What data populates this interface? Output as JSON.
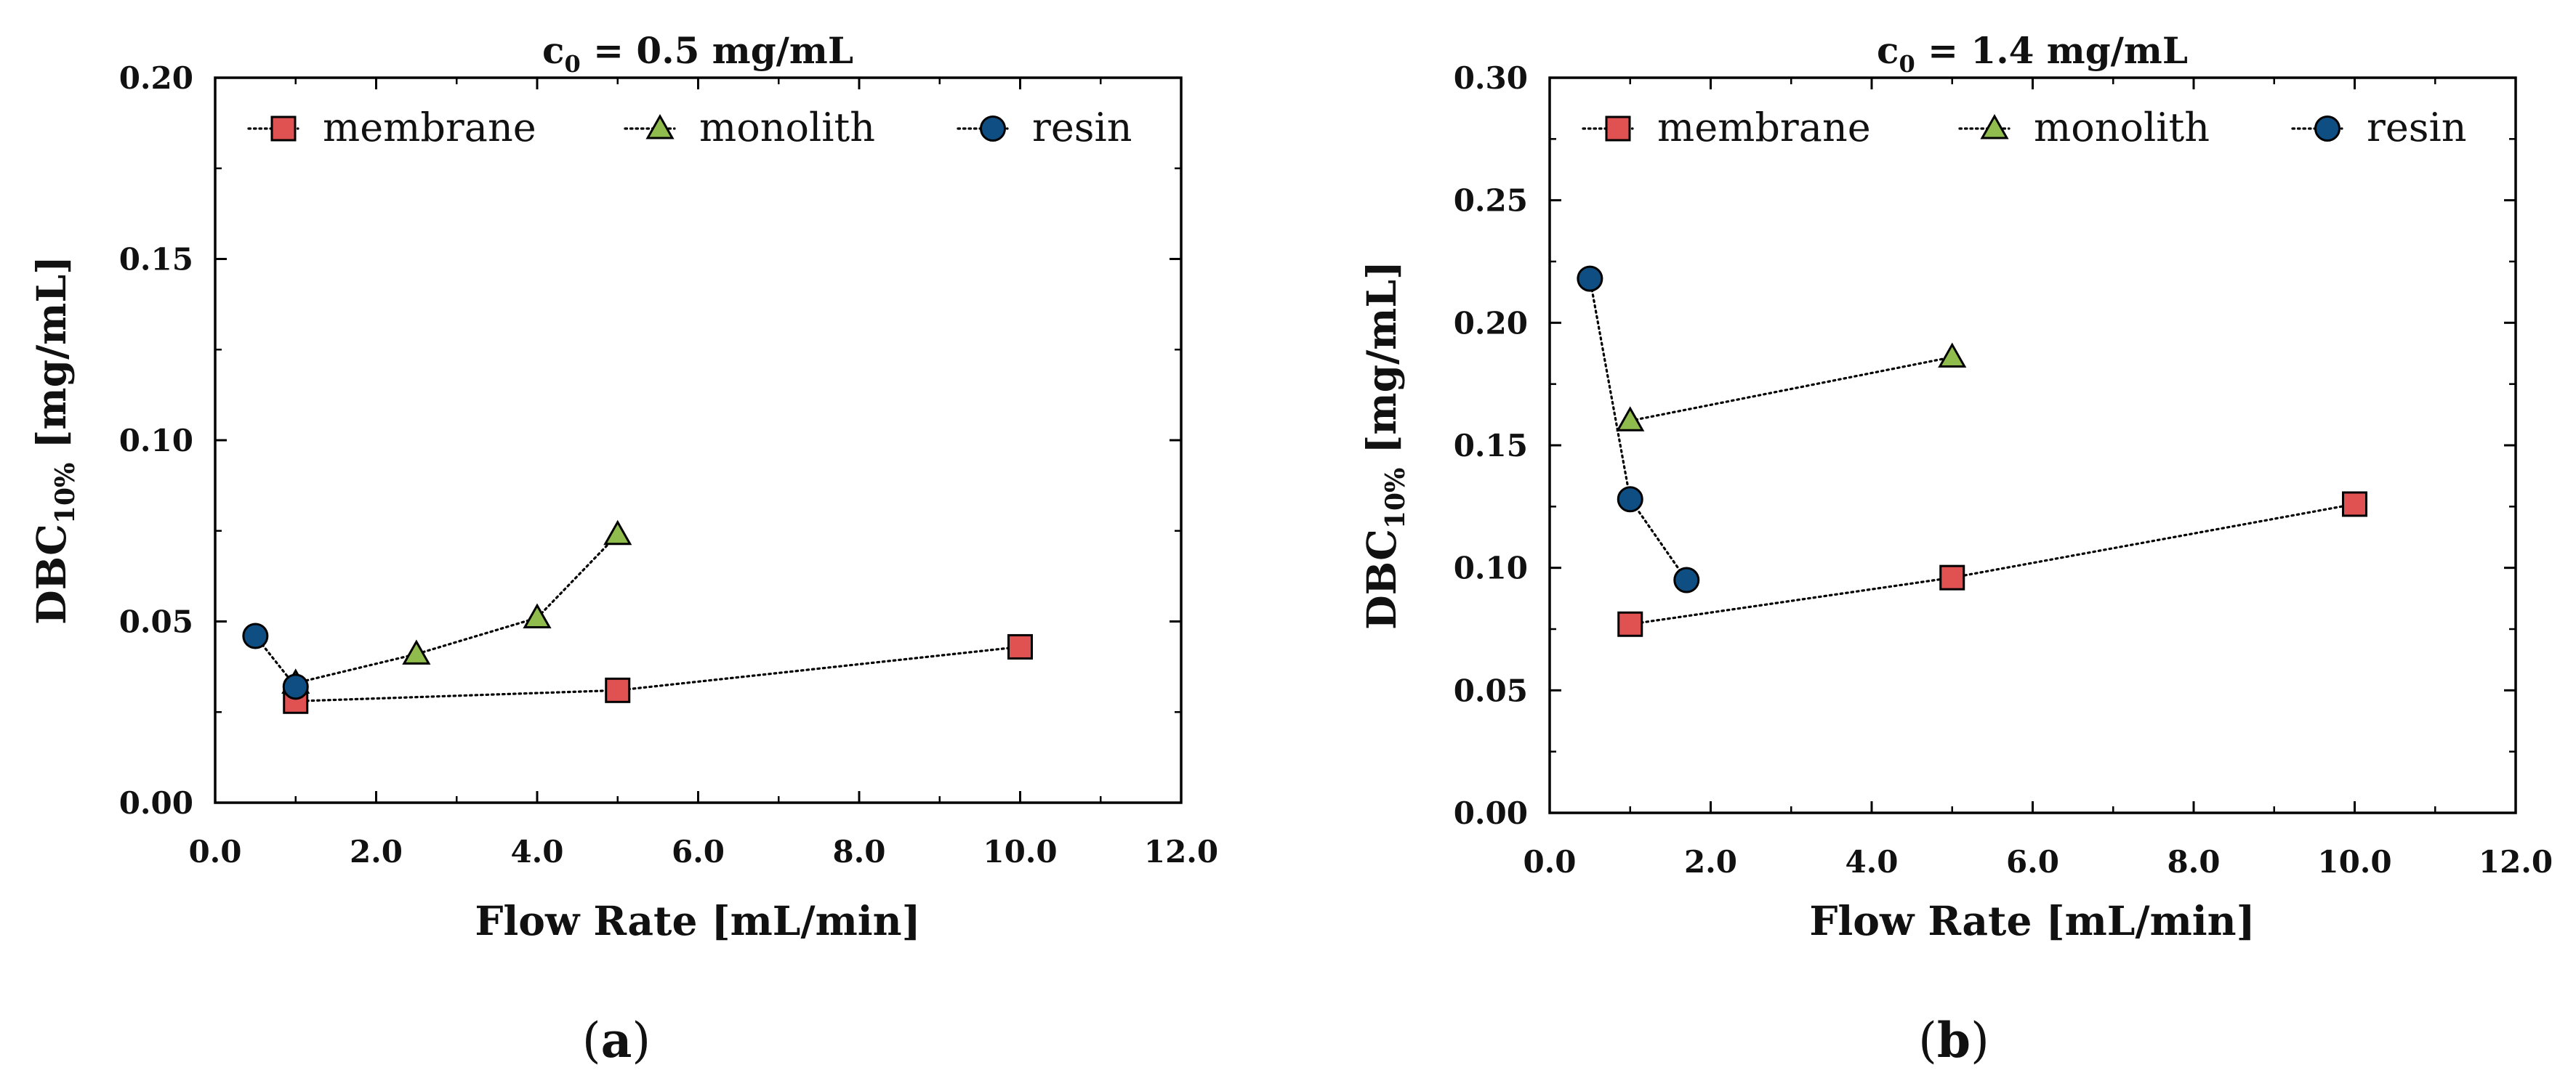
{
  "chart_data": [
    {
      "type": "line",
      "panel_label": "a",
      "title": {
        "main": "c",
        "sub": "0",
        "rest": " = 0.5 mg/mL"
      },
      "xlabel": "Flow Rate [mL/min]",
      "ylabel": {
        "main": "DBC",
        "sub": "10%",
        "rest": " [mg/mL]"
      },
      "xlim": [
        0,
        12
      ],
      "ylim": [
        0,
        0.2
      ],
      "xticks": [
        "0.0",
        "2.0",
        "4.0",
        "6.0",
        "8.0",
        "10.0",
        "12.0"
      ],
      "yticks": [
        "0.00",
        "0.05",
        "0.10",
        "0.15",
        "0.20"
      ],
      "grid": false,
      "legend_position": "top",
      "series": [
        {
          "name": "membrane",
          "marker": "square",
          "color": "#e05252",
          "x": [
            1.0,
            5.0,
            10.0
          ],
          "y": [
            0.028,
            0.031,
            0.043
          ]
        },
        {
          "name": "monolith",
          "marker": "triangle",
          "color": "#8fbc4d",
          "x": [
            1.0,
            2.5,
            4.0,
            5.0
          ],
          "y": [
            0.033,
            0.041,
            0.051,
            0.074
          ]
        },
        {
          "name": "resin",
          "marker": "circle",
          "color": "#0f4e82",
          "x": [
            0.5,
            1.0
          ],
          "y": [
            0.046,
            0.032
          ]
        }
      ]
    },
    {
      "type": "line",
      "panel_label": "b",
      "title": {
        "main": "c",
        "sub": "0",
        "rest": " = 1.4 mg/mL"
      },
      "xlabel": "Flow Rate [mL/min]",
      "ylabel": {
        "main": "DBC",
        "sub": "10%",
        "rest": " [mg/mL]"
      },
      "xlim": [
        0,
        12
      ],
      "ylim": [
        0,
        0.3
      ],
      "xticks": [
        "0.0",
        "2.0",
        "4.0",
        "6.0",
        "8.0",
        "10.0",
        "12.0"
      ],
      "yticks": [
        "0.00",
        "0.05",
        "0.10",
        "0.15",
        "0.20",
        "0.25",
        "0.30"
      ],
      "grid": false,
      "legend_position": "top",
      "series": [
        {
          "name": "membrane",
          "marker": "square",
          "color": "#e05252",
          "x": [
            1.0,
            5.0,
            10.0
          ],
          "y": [
            0.077,
            0.096,
            0.126
          ]
        },
        {
          "name": "monolith",
          "marker": "triangle",
          "color": "#8fbc4d",
          "x": [
            1.0,
            5.0
          ],
          "y": [
            0.16,
            0.186
          ]
        },
        {
          "name": "resin",
          "marker": "circle",
          "color": "#0f4e82",
          "x": [
            0.5,
            1.0,
            1.7
          ],
          "y": [
            0.218,
            0.128,
            0.095
          ]
        }
      ]
    }
  ]
}
